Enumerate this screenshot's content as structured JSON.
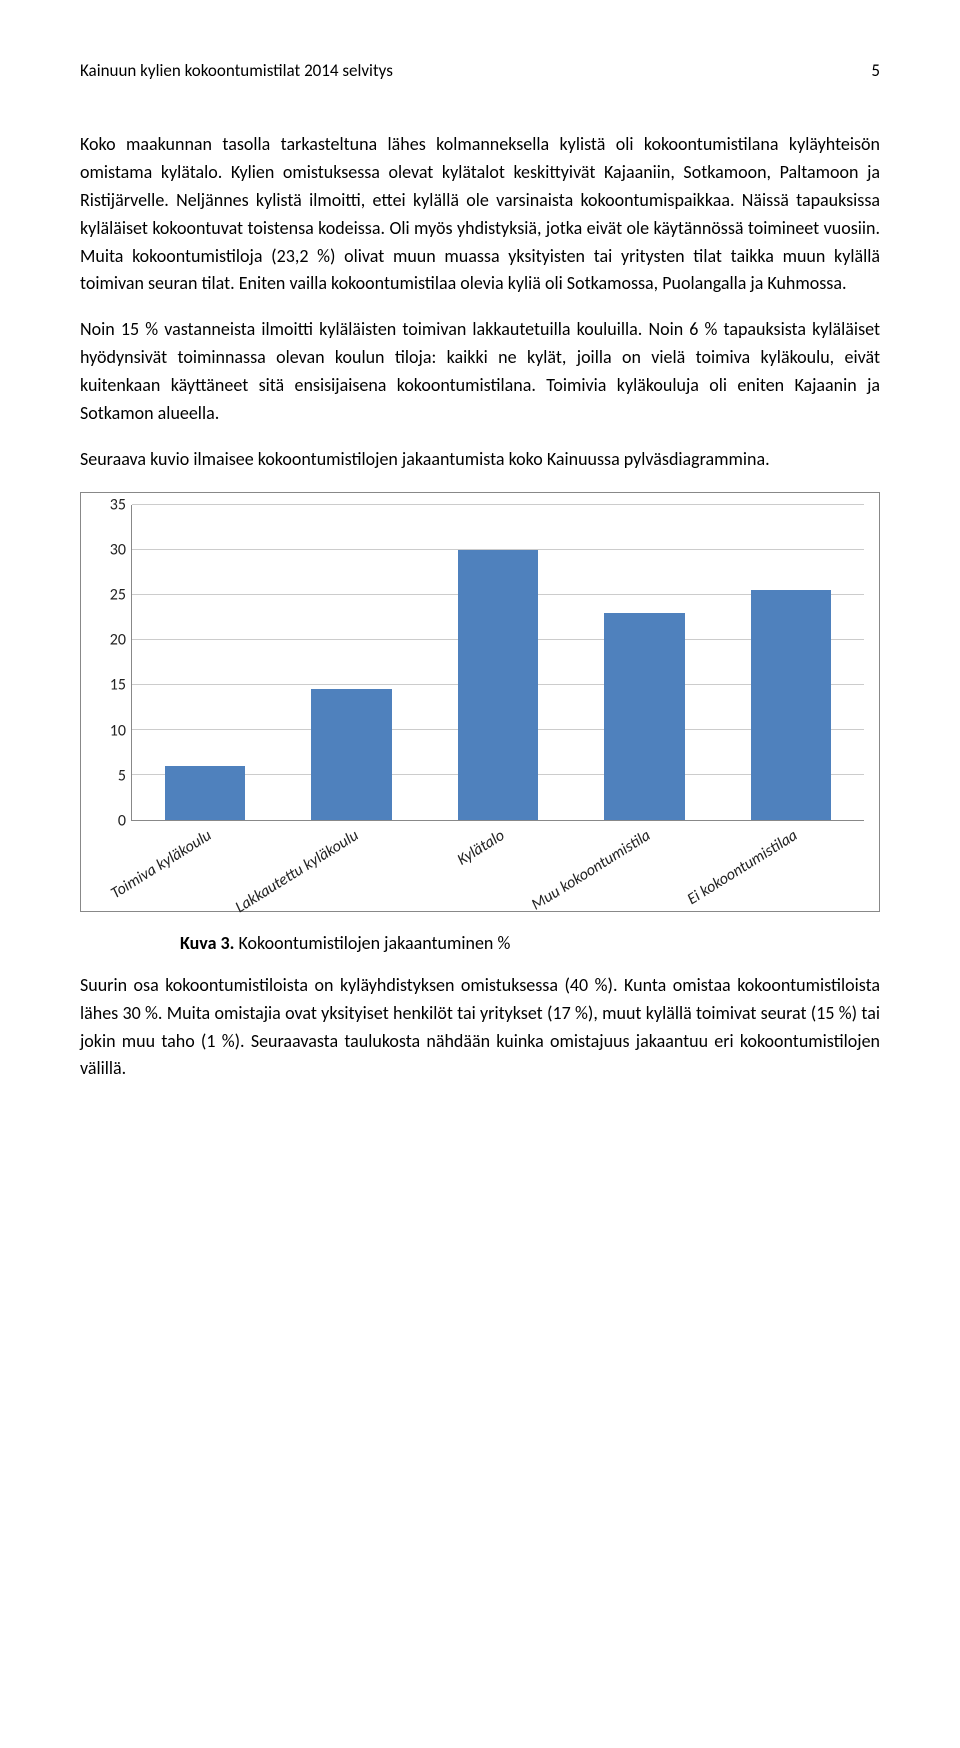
{
  "header": {
    "title": "Kainuun kylien kokoontumistilat 2014 selvitys",
    "page": "5"
  },
  "paragraphs": {
    "p1": "Koko maakunnan tasolla tarkasteltuna lähes kolmanneksella kylistä oli kokoontumistilana kyläyhteisön omistama kylätalo. Kylien omistuksessa olevat kylätalot keskittyivät Kajaaniin, Sotkamoon, Paltamoon ja Ristijärvelle. Neljännes kylistä ilmoitti, ettei kylällä ole varsinaista kokoontumispaikkaa. Näissä tapauksissa kyläläiset kokoontuvat toistensa kodeissa. Oli myös yhdistyksiä, jotka eivät ole käytännössä toimineet vuosiin. Muita kokoontumistiloja (23,2 %) olivat muun muassa yksityisten tai yritysten tilat taikka muun kylällä toimivan seuran tilat. Eniten vailla kokoontumistilaa olevia kyliä oli Sotkamossa, Puolangalla ja Kuhmossa.",
    "p2": "Noin 15 % vastanneista ilmoitti kyläläisten toimivan lakkautetuilla kouluilla. Noin 6 % tapauksista kyläläiset hyödynsivät toiminnassa olevan koulun tiloja: kaikki ne kylät, joilla on vielä toimiva kyläkoulu, eivät kuitenkaan käyttäneet sitä ensisijaisena kokoontumistilana. Toimivia kyläkouluja oli eniten Kajaanin ja Sotkamon alueella.",
    "p3": "Seuraava kuvio ilmaisee kokoontumistilojen jakaantumista koko Kainuussa pylväsdiagrammina.",
    "p4": "Suurin osa kokoontumistiloista on kyläyhdistyksen omistuksessa (40 %). Kunta omistaa kokoontumistiloista lähes 30 %.  Muita omistajia ovat yksityiset henkilöt tai yritykset (17 %), muut kylällä toimivat seurat (15 %) tai jokin muu taho (1 %). Seuraavasta taulukosta nähdään kuinka omistajuus jakaantuu eri kokoontumistilojen välillä."
  },
  "chart": {
    "type": "bar",
    "categories": [
      "Toimiva kyläkoulu",
      "Lakkautettu kyläkoulu",
      "Kylätalo",
      "Muu kokoontumistila",
      "Ei kokoontumistilaa"
    ],
    "values": [
      6,
      14.5,
      30,
      23,
      25.5
    ],
    "bar_color": "#4f81bd",
    "ylim": [
      0,
      35
    ],
    "ytick_step": 5,
    "yticks": [
      "0",
      "5",
      "10",
      "15",
      "20",
      "25",
      "30",
      "35"
    ],
    "grid_color": "#cccccc",
    "border_color": "#888888",
    "background_color": "#ffffff",
    "bar_width_pct": 11,
    "label_fontsize": 16,
    "label_style": "italic"
  },
  "caption": {
    "label": "Kuva 3.",
    "text": " Kokoontumistilojen jakaantuminen %"
  }
}
